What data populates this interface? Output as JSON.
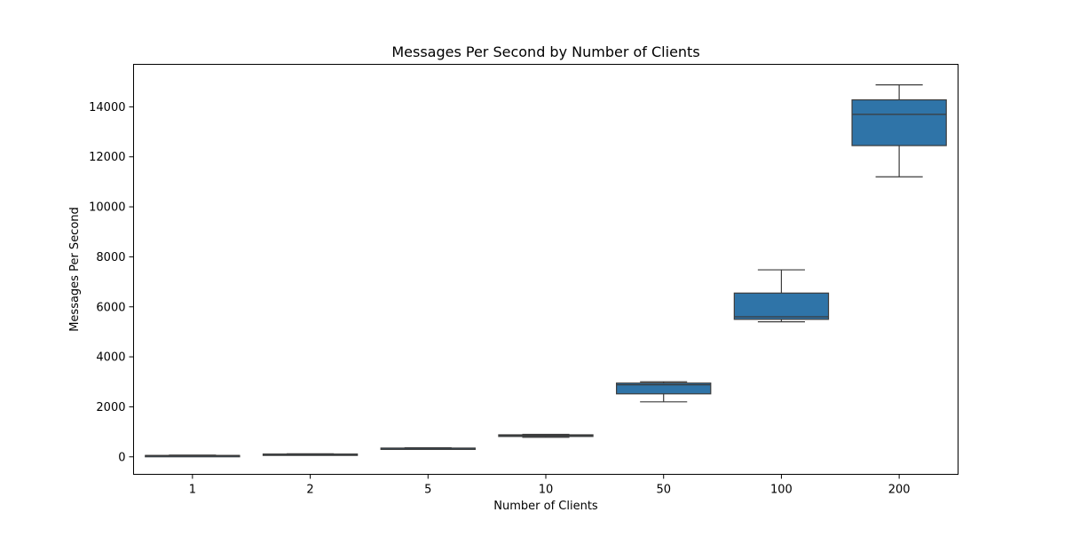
{
  "colors": {
    "box_fill": "#2f74a8",
    "line": "#3b3b3b",
    "axes": "#000000",
    "background": "#ffffff"
  },
  "chart_data": {
    "type": "box",
    "title": "Messages Per Second by Number of Clients",
    "xlabel": "Number of Clients",
    "ylabel": "Messages Per Second",
    "ylim": [
      -700,
      15700
    ],
    "yticks": [
      0,
      2000,
      4000,
      6000,
      8000,
      10000,
      12000,
      14000
    ],
    "ytick_labels": [
      "0",
      "2000",
      "4000",
      "6000",
      "8000",
      "10000",
      "12000",
      "14000"
    ],
    "grid": false,
    "legend": "none",
    "categories": [
      "1",
      "2",
      "5",
      "10",
      "50",
      "100",
      "200"
    ],
    "boxes": [
      {
        "category": "1",
        "whisker_low": 40,
        "q1": 45,
        "median": 50,
        "q3": 55,
        "whisker_high": 70
      },
      {
        "category": "2",
        "whisker_low": 70,
        "q1": 85,
        "median": 100,
        "q3": 110,
        "whisker_high": 120
      },
      {
        "category": "5",
        "whisker_low": 310,
        "q1": 320,
        "median": 340,
        "q3": 350,
        "whisker_high": 360
      },
      {
        "category": "10",
        "whisker_low": 780,
        "q1": 815,
        "median": 850,
        "q3": 880,
        "whisker_high": 900
      },
      {
        "category": "50",
        "whisker_low": 2200,
        "q1": 2520,
        "median": 2880,
        "q3": 2950,
        "whisker_high": 3000
      },
      {
        "category": "100",
        "whisker_low": 5400,
        "q1": 5500,
        "median": 5600,
        "q3": 6550,
        "whisker_high": 7480
      },
      {
        "category": "200",
        "whisker_low": 11200,
        "q1": 12450,
        "median": 13700,
        "q3": 14280,
        "whisker_high": 14880
      }
    ]
  }
}
